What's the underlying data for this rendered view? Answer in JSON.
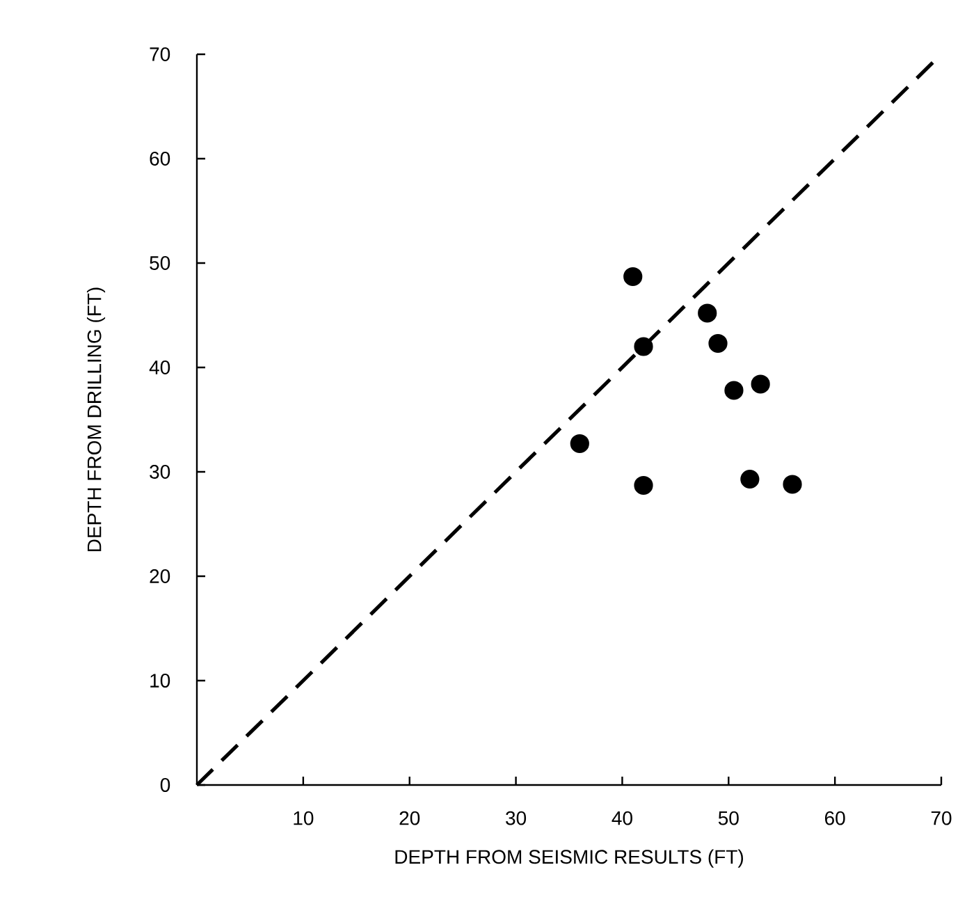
{
  "chart_data": {
    "type": "scatter",
    "xlabel": "DEPTH FROM SEISMIC RESULTS (FT)",
    "ylabel": "DEPTH FROM DRILLING (FT)",
    "xlim": [
      0,
      70
    ],
    "ylim": [
      0,
      70
    ],
    "xticks": [
      10,
      20,
      30,
      40,
      50,
      60,
      70
    ],
    "yticks": [
      0,
      10,
      20,
      30,
      40,
      50,
      60,
      70
    ],
    "series": [
      {
        "type": "line",
        "color": "#000000",
        "line_style": "dashed",
        "marker": "none",
        "x": [
          0,
          70
        ],
        "values": [
          0,
          70
        ]
      },
      {
        "color": "#000000",
        "marker": "circle",
        "x": [
          41,
          48,
          42,
          49,
          50.5,
          53,
          36,
          42,
          52,
          56
        ],
        "values": [
          48.7,
          45.2,
          42,
          42.3,
          37.8,
          38.4,
          32.7,
          28.7,
          29.3,
          28.8
        ]
      }
    ]
  }
}
